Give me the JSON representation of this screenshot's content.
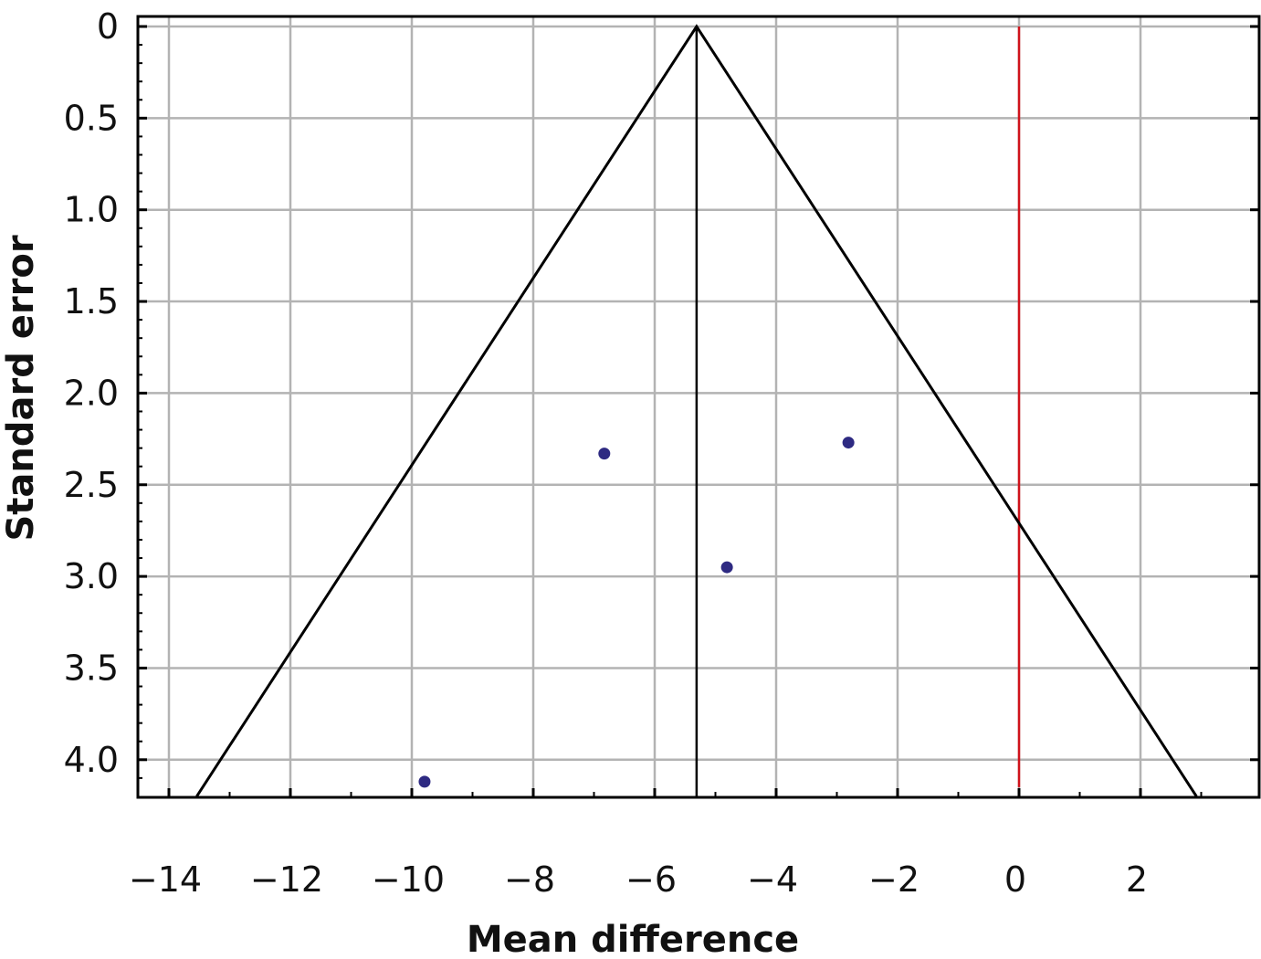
{
  "chart_data": {
    "type": "scatter",
    "subtype": "funnel plot",
    "xlabel": "Mean difference",
    "ylabel": "Standard error",
    "xlim": [
      -14.55,
      3.9
    ],
    "ylim": [
      0,
      4.2
    ],
    "y_inverted": true,
    "xticks": [
      -14,
      -12,
      -10,
      -8,
      -6,
      -4,
      -2,
      0,
      2
    ],
    "xtick_labels": [
      "−14",
      "−12",
      "−10",
      "−8",
      "−6",
      "−4",
      "−2",
      "0",
      "2"
    ],
    "yticks": [
      0,
      0.5,
      1.0,
      1.5,
      2.0,
      2.5,
      3.0,
      3.5,
      4.0
    ],
    "ytick_labels": [
      "0",
      "0.5",
      "1.0",
      "1.5",
      "2.0",
      "2.5",
      "3.0",
      "3.5",
      "4.0"
    ],
    "grid": true,
    "pooled_estimate": -5.31,
    "null_line": 0,
    "funnel_multiplier": 1.96,
    "points": [
      {
        "x": -9.79,
        "y": 4.12
      },
      {
        "x": -6.83,
        "y": 2.33
      },
      {
        "x": -4.81,
        "y": 2.95
      },
      {
        "x": -2.81,
        "y": 2.27
      }
    ],
    "colors": {
      "points": "#2e2a82",
      "null_line": "#d0121b",
      "grid": "#b3b3b3",
      "funnel": "#000000"
    }
  }
}
